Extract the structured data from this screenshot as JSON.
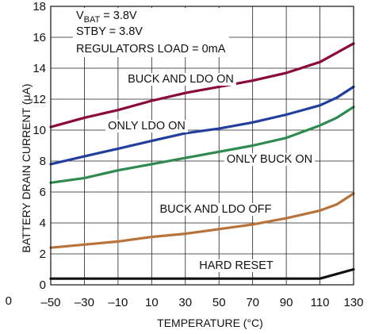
{
  "chart_data": {
    "type": "line",
    "xlabel": "TEMPERATURE (°C)",
    "ylabel": "BATTERY DRAIN CURRENT (μA)",
    "xlim": [
      -50,
      130
    ],
    "ylim": [
      0,
      18
    ],
    "xticks": [
      -50,
      -30,
      -10,
      10,
      30,
      50,
      70,
      90,
      110,
      130
    ],
    "xtick_labels": [
      "–50",
      "–30",
      "–10",
      "10",
      "30",
      "50",
      "70",
      "90",
      "110",
      "130"
    ],
    "yticks": [
      0,
      2,
      4,
      6,
      8,
      10,
      12,
      14,
      16,
      18
    ],
    "yaxis_extra_label": "0",
    "grid": true,
    "conditions": {
      "vbat_prefix": "V",
      "vbat_sub": "BAT",
      "vbat_value": " = 3.8V",
      "stby": "STBY = 3.8V",
      "load": "REGULATORS LOAD = 0mA"
    },
    "series": [
      {
        "name": "BUCK AND LDO ON",
        "color": "#8b0a3c",
        "x": [
          -50,
          -30,
          -10,
          10,
          30,
          50,
          70,
          90,
          110,
          120,
          130
        ],
        "y": [
          10.2,
          10.8,
          11.3,
          11.9,
          12.4,
          12.8,
          13.2,
          13.7,
          14.4,
          15.0,
          15.6
        ]
      },
      {
        "name": "ONLY LDO ON",
        "color": "#233f9e",
        "x": [
          -50,
          -30,
          -10,
          10,
          30,
          50,
          70,
          90,
          110,
          120,
          130
        ],
        "y": [
          7.8,
          8.3,
          8.8,
          9.3,
          9.8,
          10.1,
          10.5,
          11.0,
          11.6,
          12.1,
          12.8
        ]
      },
      {
        "name": "ONLY BUCK ON",
        "color": "#2f8a4f",
        "x": [
          -50,
          -30,
          -10,
          10,
          30,
          50,
          70,
          90,
          110,
          120,
          130
        ],
        "y": [
          6.6,
          6.9,
          7.4,
          7.8,
          8.2,
          8.6,
          9.0,
          9.5,
          10.3,
          10.8,
          11.5
        ]
      },
      {
        "name": "BUCK AND LDO OFF",
        "color": "#b8733a",
        "x": [
          -50,
          -30,
          -10,
          10,
          30,
          50,
          70,
          90,
          110,
          120,
          130
        ],
        "y": [
          2.4,
          2.6,
          2.8,
          3.1,
          3.3,
          3.6,
          3.9,
          4.3,
          4.8,
          5.2,
          5.9
        ]
      },
      {
        "name": "HARD RESET",
        "color": "#111111",
        "x": [
          -50,
          -30,
          -10,
          10,
          30,
          50,
          70,
          90,
          110,
          130
        ],
        "y": [
          0.4,
          0.4,
          0.4,
          0.4,
          0.4,
          0.4,
          0.4,
          0.4,
          0.4,
          1.0
        ]
      }
    ]
  }
}
